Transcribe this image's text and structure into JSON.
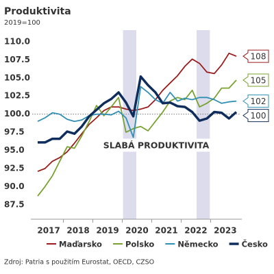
{
  "chart_data": {
    "type": "line",
    "title": "Produktivita",
    "subtitle": "2019=100",
    "categories": [
      null,
      "2017",
      null,
      null,
      null,
      "2018",
      null,
      null,
      null,
      "2019",
      null,
      null,
      null,
      "2020",
      null,
      null,
      null,
      "2021",
      null,
      null,
      null,
      "2022",
      null,
      null,
      null,
      "2023",
      null,
      null
    ],
    "series": [
      {
        "name": "Maďarsko",
        "color": "#9b1b1b",
        "values": [
          92.1,
          92.5,
          93.5,
          94.0,
          94.8,
          96.0,
          97.3,
          98.6,
          99.5,
          100.5,
          101.0,
          101.0,
          100.7,
          100.5,
          100.7,
          101.0,
          102.0,
          103.3,
          104.3,
          105.3,
          106.6,
          107.6,
          107.0,
          105.8,
          105.6,
          106.8,
          108.4,
          108.0
        ],
        "value_labels": [
          null,
          null,
          null,
          null,
          null,
          null,
          null,
          null,
          null,
          null,
          null,
          null,
          null,
          null,
          null,
          null,
          null,
          null,
          null,
          null,
          null,
          null,
          null,
          null,
          null,
          null,
          null,
          "108"
        ]
      },
      {
        "name": "Polsko",
        "color": "#78a22f",
        "values": [
          88.7,
          90.0,
          91.5,
          93.5,
          95.5,
          95.3,
          97.0,
          99.0,
          101.2,
          99.8,
          101.0,
          102.3,
          97.5,
          98.0,
          98.3,
          97.7,
          99.0,
          100.3,
          101.8,
          102.3,
          102.0,
          103.3,
          101.0,
          101.5,
          102.2,
          103.6,
          103.6,
          104.7
        ],
        "value_labels": [
          null,
          null,
          null,
          null,
          null,
          null,
          null,
          null,
          null,
          null,
          null,
          null,
          null,
          null,
          null,
          null,
          null,
          null,
          null,
          null,
          null,
          null,
          null,
          null,
          null,
          null,
          null,
          "105"
        ]
      },
      {
        "name": "Německo",
        "color": "#2f8fb5",
        "values": [
          99.0,
          99.5,
          100.2,
          100.0,
          99.3,
          99.0,
          99.2,
          99.8,
          100.0,
          100.0,
          99.9,
          100.4,
          99.5,
          96.8,
          103.8,
          103.0,
          102.0,
          101.5,
          103.0,
          101.8,
          102.2,
          102.0,
          102.3,
          102.3,
          102.0,
          101.5,
          101.7,
          101.8
        ],
        "value_labels": [
          null,
          null,
          null,
          null,
          null,
          null,
          null,
          null,
          null,
          null,
          null,
          null,
          null,
          null,
          null,
          null,
          null,
          null,
          null,
          null,
          null,
          null,
          null,
          null,
          null,
          null,
          null,
          "102"
        ]
      },
      {
        "name": "Česko",
        "color": "#0f2d5c",
        "values": [
          96.1,
          96.1,
          96.6,
          96.6,
          97.6,
          97.3,
          98.3,
          99.7,
          100.6,
          101.5,
          102.1,
          103.0,
          101.6,
          99.7,
          105.2,
          104.0,
          103.0,
          101.5,
          101.6,
          101.1,
          101.0,
          100.3,
          99.1,
          99.4,
          100.3,
          100.2,
          99.4,
          100.3
        ],
        "value_labels": [
          null,
          null,
          null,
          null,
          null,
          null,
          null,
          null,
          null,
          null,
          null,
          null,
          null,
          null,
          null,
          null,
          null,
          null,
          null,
          null,
          null,
          null,
          null,
          null,
          null,
          null,
          null,
          "100"
        ]
      }
    ],
    "ylim": [
      85.5,
      111.6
    ],
    "yticks": [
      87.5,
      {
        "value": 90,
        "label": "90.0"
      },
      92.5,
      {
        "value": 95,
        "label": "95.0"
      },
      97.5,
      {
        "value": 100,
        "label": "100.0"
      },
      102.5,
      {
        "value": 105,
        "label": "105.0"
      },
      107.5,
      {
        "value": 110,
        "label": "110.0"
      }
    ],
    "reference_line": 100,
    "shaded_periods": [
      [
        12,
        13
      ],
      [
        22,
        23
      ]
    ],
    "annotation": "SLABÁ PRODUKTIVITA",
    "source": "Zdroj: Patria s použitím Eurostat, OECD, CZSO",
    "legend": "bottom"
  }
}
